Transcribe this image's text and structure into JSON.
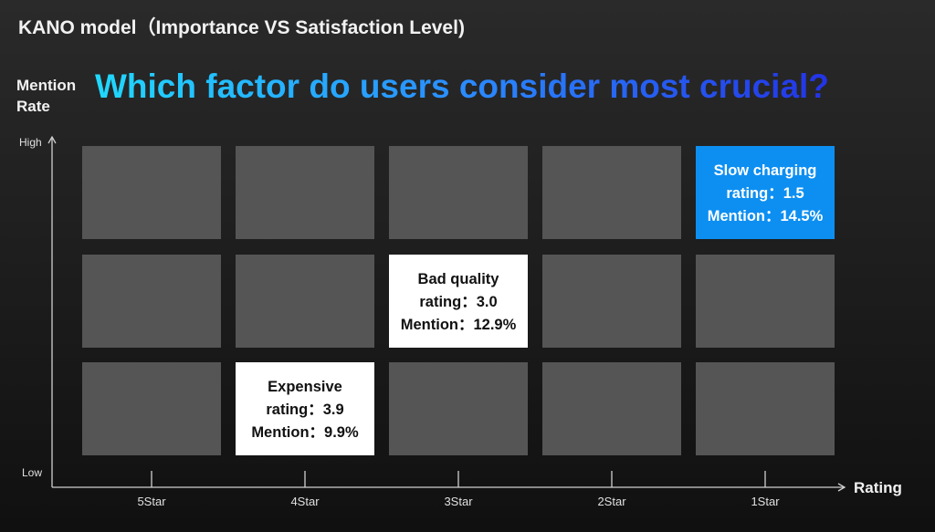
{
  "page_title": "KANO model（Importance VS Satisfaction Level)",
  "headline": "Which factor do users consider most crucial?",
  "colors": {
    "cell": "#555555",
    "highlight_blue": "#0d8ff2",
    "highlight_white": "#ffffff",
    "axis": "#d0d0d0"
  },
  "chart_data": {
    "type": "heatmap",
    "title": "KANO model（Importance VS Satisfaction Level)",
    "xlabel": "Rating",
    "ylabel": "Mention Rate",
    "y_ticks": [
      "High",
      "Low"
    ],
    "x_categories": [
      "5Star",
      "4Star",
      "3Star",
      "2Star",
      "1Star"
    ],
    "rows": [
      "top",
      "middle",
      "bottom"
    ],
    "highlights": [
      {
        "name": "Slow charging",
        "rating_label": "rating：1.5",
        "mention_label": "Mention：14.5%",
        "rating": 1.5,
        "mention_pct": 14.5,
        "column": 4,
        "row": 0,
        "style": "blue"
      },
      {
        "name": "Bad quality",
        "rating_label": "rating：3.0",
        "mention_label": "Mention：12.9%",
        "rating": 3.0,
        "mention_pct": 12.9,
        "column": 2,
        "row": 1,
        "style": "white"
      },
      {
        "name": "Expensive",
        "rating_label": "rating：3.9",
        "mention_label": "Mention：9.9%",
        "rating": 3.9,
        "mention_pct": 9.9,
        "column": 1,
        "row": 2,
        "style": "white"
      }
    ]
  }
}
